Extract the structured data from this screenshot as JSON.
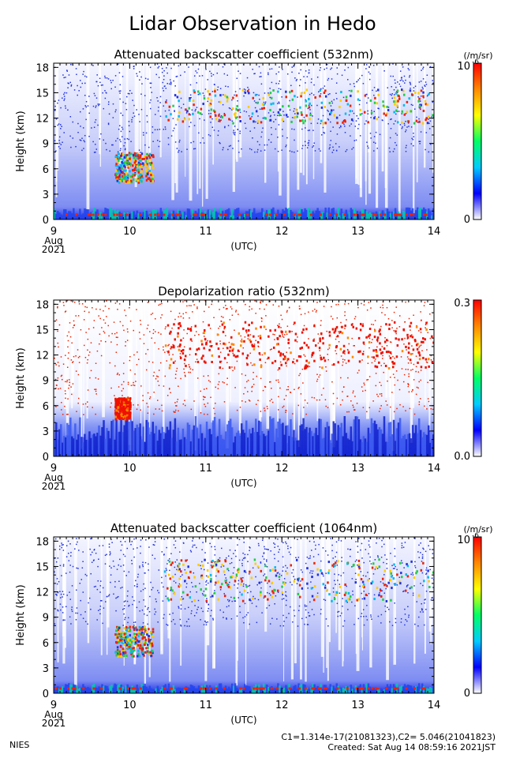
{
  "page": {
    "title": "Lidar Observation in Hedo",
    "footer_left": "NIES",
    "footer_calib": "C1=1.314e-17(21081323),C2= 5.046(21041823)",
    "footer_created": "Created: Sat Aug 14 08:59:16 2021JST"
  },
  "colors": {
    "background": "#ffffff",
    "low": "#2233dd",
    "high": "#ee2200"
  },
  "chart_data": [
    {
      "type": "heatmap",
      "title": "Attenuated backscatter coefficient (532nm)",
      "ylabel": "Height (km)",
      "xlabel": "(UTC)",
      "x_ticks": [
        "9",
        "10",
        "11",
        "12",
        "13",
        "14"
      ],
      "x_start_label": [
        "Aug",
        "2021"
      ],
      "y_ticks": [
        "0",
        "3",
        "6",
        "9",
        "12",
        "15",
        "18"
      ],
      "ylim": [
        0,
        18.5
      ],
      "xlim": [
        9,
        14
      ],
      "colorbar": {
        "min_label": "0",
        "max_label": "10",
        "exponent": "-6",
        "unit": "(/m/sr)",
        "colors": [
          "#ffffff",
          "#0000ff",
          "#00ccff",
          "#00ff66",
          "#ffff00",
          "#ff8800",
          "#ff0000"
        ]
      },
      "cloud_layers": [
        {
          "t_start": 10.45,
          "t_end": 14.0,
          "base_km": 11.5,
          "top_km": 15.5
        },
        {
          "t_start": 9.8,
          "t_end": 10.3,
          "base_km": 4.5,
          "top_km": 8.0
        }
      ],
      "boundary_layer_top_km": 1.2
    },
    {
      "type": "heatmap",
      "title": "Depolarization ratio (532nm)",
      "ylabel": "Height (km)",
      "xlabel": "(UTC)",
      "x_ticks": [
        "9",
        "10",
        "11",
        "12",
        "13",
        "14"
      ],
      "x_start_label": [
        "Aug",
        "2021"
      ],
      "y_ticks": [
        "0",
        "3",
        "6",
        "9",
        "12",
        "15",
        "18"
      ],
      "ylim": [
        0,
        18.5
      ],
      "xlim": [
        9,
        14
      ],
      "colorbar": {
        "min_label": "0.0",
        "max_label": "0.3",
        "exponent": "",
        "unit": "",
        "colors": [
          "#ffffff",
          "#0000ff",
          "#00ccff",
          "#00ff66",
          "#ffff00",
          "#ff8800",
          "#ff0000"
        ]
      },
      "cloud_layers": [
        {
          "t_start": 10.45,
          "t_end": 14.0,
          "base_km": 10.5,
          "top_km": 16.0
        },
        {
          "t_start": 9.8,
          "t_end": 10.0,
          "base_km": 4.5,
          "top_km": 7.0
        }
      ],
      "boundary_layer_top_km": 4.0
    },
    {
      "type": "heatmap",
      "title": "Attenuated backscatter coefficient (1064nm)",
      "ylabel": "Height (km)",
      "xlabel": "(UTC)",
      "x_ticks": [
        "9",
        "10",
        "11",
        "12",
        "13",
        "14"
      ],
      "x_start_label": [
        "Aug",
        "2021"
      ],
      "y_ticks": [
        "0",
        "3",
        "6",
        "9",
        "12",
        "15",
        "18"
      ],
      "ylim": [
        0,
        18.5
      ],
      "xlim": [
        9,
        14
      ],
      "colorbar": {
        "min_label": "0",
        "max_label": "10",
        "exponent": "-6",
        "unit": "(/m/sr)",
        "colors": [
          "#ffffff",
          "#0000ff",
          "#00ccff",
          "#00ff66",
          "#ffff00",
          "#ff8800",
          "#ff0000"
        ]
      },
      "cloud_layers": [
        {
          "t_start": 10.45,
          "t_end": 14.0,
          "base_km": 11.0,
          "top_km": 16.0
        },
        {
          "t_start": 9.8,
          "t_end": 10.3,
          "base_km": 4.5,
          "top_km": 8.0
        }
      ],
      "boundary_layer_top_km": 1.0
    }
  ]
}
